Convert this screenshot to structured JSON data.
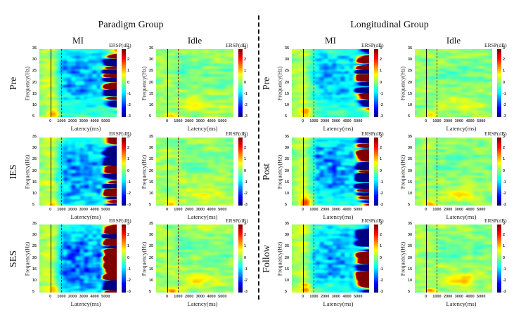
{
  "groups": [
    {
      "title": "Paradigm Group",
      "columns": [
        "MI",
        "Idle"
      ],
      "rows": [
        "Pre",
        "IES",
        "SES"
      ]
    },
    {
      "title": "Longitudinal Group",
      "columns": [
        "MI",
        "Idle"
      ],
      "rows": [
        "Pre",
        "Post",
        "Follow"
      ]
    }
  ],
  "axes": {
    "ylabel": "Frequency(Hz)",
    "xlabel": "Latency(ms)",
    "colorbar_label": "ERSP(dB)",
    "yticks": [
      "35",
      "30",
      "25",
      "20",
      "15",
      "10",
      "5"
    ],
    "xticks": [
      "0",
      "1000",
      "2000",
      "3000",
      "4000",
      "5000"
    ],
    "cticks": [
      "3",
      "2",
      "1",
      "0",
      "-1",
      "-2",
      "-3"
    ]
  },
  "chart_data": {
    "type": "heatmap",
    "title": "ERSP time-frequency maps",
    "xlabel": "Latency(ms)",
    "ylabel": "Frequency(Hz)",
    "colorbar_label": "ERSP(dB)",
    "xlim": [
      -1000,
      6000
    ],
    "ylim": [
      5,
      35
    ],
    "clim": [
      -3,
      3
    ],
    "x_ticks": [
      0,
      1000,
      2000,
      3000,
      4000,
      5000
    ],
    "y_ticks": [
      5,
      10,
      15,
      20,
      25,
      30,
      35
    ],
    "c_ticks": [
      -3,
      -2,
      -1,
      0,
      1,
      2,
      3
    ],
    "event_markers_ms": {
      "solid": 0,
      "dashed": 1000
    },
    "colormap": "jet",
    "panels": [
      {
        "group": "Paradigm Group",
        "row": "Pre",
        "condition": "MI",
        "desync_band_hz": [
          15,
          30
        ],
        "min_ersp_db": -2.2,
        "peak_ersp_db": 0.8
      },
      {
        "group": "Paradigm Group",
        "row": "Pre",
        "condition": "Idle",
        "desync_band_hz": null,
        "min_ersp_db": -0.8,
        "peak_ersp_db": 0.9
      },
      {
        "group": "Paradigm Group",
        "row": "IES",
        "condition": "MI",
        "desync_band_hz": [
          8,
          30
        ],
        "min_ersp_db": -2.3,
        "peak_ersp_db": 0.7
      },
      {
        "group": "Paradigm Group",
        "row": "IES",
        "condition": "Idle",
        "desync_band_hz": null,
        "min_ersp_db": -0.8,
        "peak_ersp_db": 1.0
      },
      {
        "group": "Paradigm Group",
        "row": "SES",
        "condition": "MI",
        "desync_band_hz": [
          8,
          30
        ],
        "min_ersp_db": -2.6,
        "peak_ersp_db": 0.8
      },
      {
        "group": "Paradigm Group",
        "row": "SES",
        "condition": "Idle",
        "desync_band_hz": null,
        "min_ersp_db": -0.8,
        "peak_ersp_db": 1.4
      },
      {
        "group": "Longitudinal Group",
        "row": "Pre",
        "condition": "MI",
        "desync_band_hz": [
          15,
          30
        ],
        "min_ersp_db": -1.8,
        "peak_ersp_db": 1.0
      },
      {
        "group": "Longitudinal Group",
        "row": "Pre",
        "condition": "Idle",
        "desync_band_hz": null,
        "min_ersp_db": -0.6,
        "peak_ersp_db": 0.8
      },
      {
        "group": "Longitudinal Group",
        "row": "Post",
        "condition": "MI",
        "desync_band_hz": [
          12,
          30
        ],
        "min_ersp_db": -2.2,
        "peak_ersp_db": 1.3
      },
      {
        "group": "Longitudinal Group",
        "row": "Post",
        "condition": "Idle",
        "desync_band_hz": null,
        "min_ersp_db": -0.8,
        "peak_ersp_db": 0.9
      },
      {
        "group": "Longitudinal Group",
        "row": "Follow",
        "condition": "MI",
        "desync_band_hz": [
          12,
          30
        ],
        "min_ersp_db": -2.0,
        "peak_ersp_db": 1.2
      },
      {
        "group": "Longitudinal Group",
        "row": "Follow",
        "condition": "Idle",
        "desync_band_hz": null,
        "min_ersp_db": -0.6,
        "peak_ersp_db": 1.3
      }
    ]
  }
}
